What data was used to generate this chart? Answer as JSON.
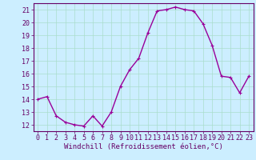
{
  "x": [
    0,
    1,
    2,
    3,
    4,
    5,
    6,
    7,
    8,
    9,
    10,
    11,
    12,
    13,
    14,
    15,
    16,
    17,
    18,
    19,
    20,
    21,
    22,
    23
  ],
  "y": [
    14,
    14.2,
    12.7,
    12.2,
    12.0,
    11.9,
    12.7,
    11.9,
    13.0,
    15.0,
    16.3,
    17.2,
    19.2,
    20.9,
    21.0,
    21.2,
    21.0,
    20.9,
    19.9,
    18.2,
    15.8,
    15.7,
    14.5,
    15.8
  ],
  "ylim": [
    11.5,
    21.5
  ],
  "yticks": [
    12,
    13,
    14,
    15,
    16,
    17,
    18,
    19,
    20,
    21
  ],
  "xlim": [
    -0.5,
    23.5
  ],
  "xticks": [
    0,
    1,
    2,
    3,
    4,
    5,
    6,
    7,
    8,
    9,
    10,
    11,
    12,
    13,
    14,
    15,
    16,
    17,
    18,
    19,
    20,
    21,
    22,
    23
  ],
  "xlabel": "Windchill (Refroidissement éolien,°C)",
  "line_color": "#990099",
  "marker": "+",
  "marker_color": "#990099",
  "bg_color": "#cceeff",
  "grid_color": "#aaddcc",
  "axis_color": "#660066",
  "tick_color": "#660066",
  "label_color": "#660066",
  "xlabel_fontsize": 6.5,
  "tick_fontsize": 6.0,
  "linewidth": 1.0,
  "markersize": 3.5
}
